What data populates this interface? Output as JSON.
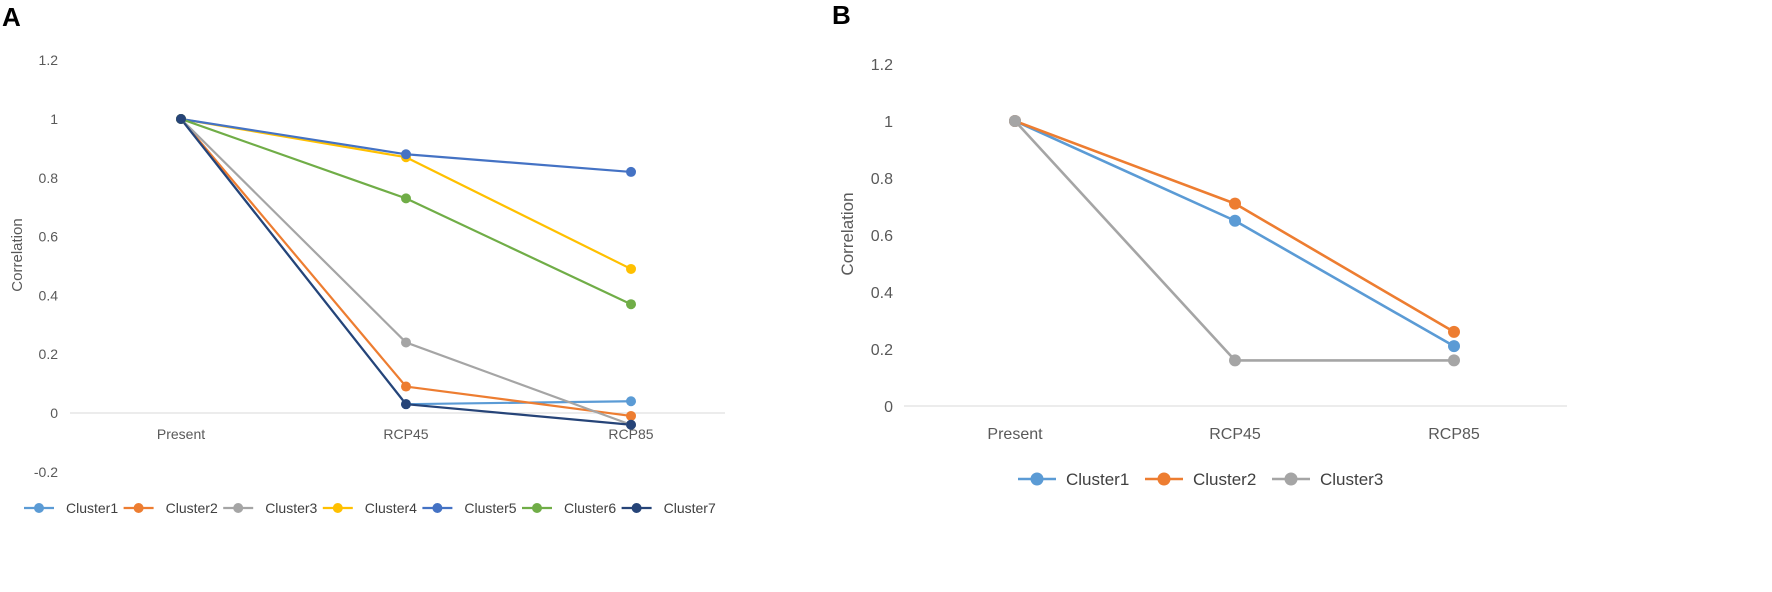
{
  "chart_data": [
    {
      "panel": "A",
      "type": "line",
      "categories": [
        "Present",
        "RCP45",
        "RCP85"
      ],
      "ylabel": "Correlation",
      "ylim": [
        -0.2,
        1.2
      ],
      "yticks": [
        "-0.2",
        "0",
        "0.2",
        "0.4",
        "0.6",
        "0.8",
        "1",
        "1.2"
      ],
      "yticks_values": [
        -0.2,
        0,
        0.2,
        0.4,
        0.6,
        0.8,
        1,
        1.2
      ],
      "legend_position": "bottom",
      "series": [
        {
          "name": "Cluster1",
          "color": "#5B9BD5",
          "values": [
            1.0,
            0.03,
            0.04
          ]
        },
        {
          "name": "Cluster2",
          "color": "#ED7D31",
          "values": [
            1.0,
            0.09,
            -0.01
          ]
        },
        {
          "name": "Cluster3",
          "color": "#A5A5A5",
          "values": [
            1.0,
            0.24,
            -0.04
          ]
        },
        {
          "name": "Cluster4",
          "color": "#FFC000",
          "values": [
            1.0,
            0.87,
            0.49
          ]
        },
        {
          "name": "Cluster5",
          "color": "#4472C4",
          "values": [
            1.0,
            0.88,
            0.82
          ]
        },
        {
          "name": "Cluster6",
          "color": "#70AD47",
          "values": [
            1.0,
            0.73,
            0.37
          ]
        },
        {
          "name": "Cluster7",
          "color": "#264478",
          "values": [
            1.0,
            0.03,
            -0.04
          ]
        }
      ]
    },
    {
      "panel": "B",
      "type": "line",
      "categories": [
        "Present",
        "RCP45",
        "RCP85"
      ],
      "ylabel": "Correlation",
      "ylim": [
        0,
        1.2
      ],
      "yticks": [
        "0",
        "0.2",
        "0.4",
        "0.6",
        "0.8",
        "1",
        "1.2"
      ],
      "yticks_values": [
        0,
        0.2,
        0.4,
        0.6,
        0.8,
        1,
        1.2
      ],
      "legend_position": "bottom",
      "series": [
        {
          "name": "Cluster1",
          "color": "#5B9BD5",
          "values": [
            1.0,
            0.65,
            0.21
          ]
        },
        {
          "name": "Cluster2",
          "color": "#ED7D31",
          "values": [
            1.0,
            0.71,
            0.26
          ]
        },
        {
          "name": "Cluster3",
          "color": "#A5A5A5",
          "values": [
            1.0,
            0.16,
            0.16
          ]
        }
      ]
    }
  ]
}
